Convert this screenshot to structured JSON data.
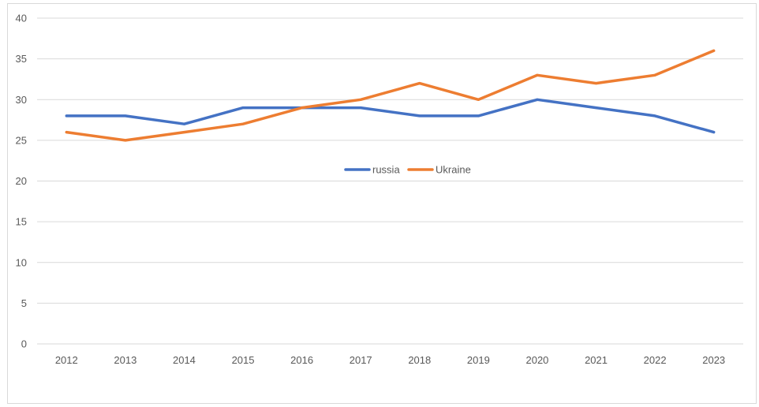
{
  "chart_data": {
    "type": "line",
    "title": "",
    "xlabel": "",
    "ylabel": "",
    "x": [
      "2012",
      "2013",
      "2014",
      "2015",
      "2016",
      "2017",
      "2018",
      "2019",
      "2020",
      "2021",
      "2022",
      "2023"
    ],
    "ylim": [
      0,
      40
    ],
    "yticks": [
      0,
      5,
      10,
      15,
      20,
      25,
      30,
      35,
      40
    ],
    "grid": true,
    "legend_position": "center",
    "series": [
      {
        "name": "russia",
        "color": "#4472c4",
        "values": [
          28,
          28,
          27,
          29,
          29,
          29,
          28,
          28,
          30,
          29,
          28,
          26
        ]
      },
      {
        "name": "Ukraine",
        "color": "#ed7d31",
        "values": [
          26,
          25,
          26,
          27,
          29,
          30,
          32,
          30,
          33,
          32,
          33,
          36
        ]
      }
    ]
  }
}
